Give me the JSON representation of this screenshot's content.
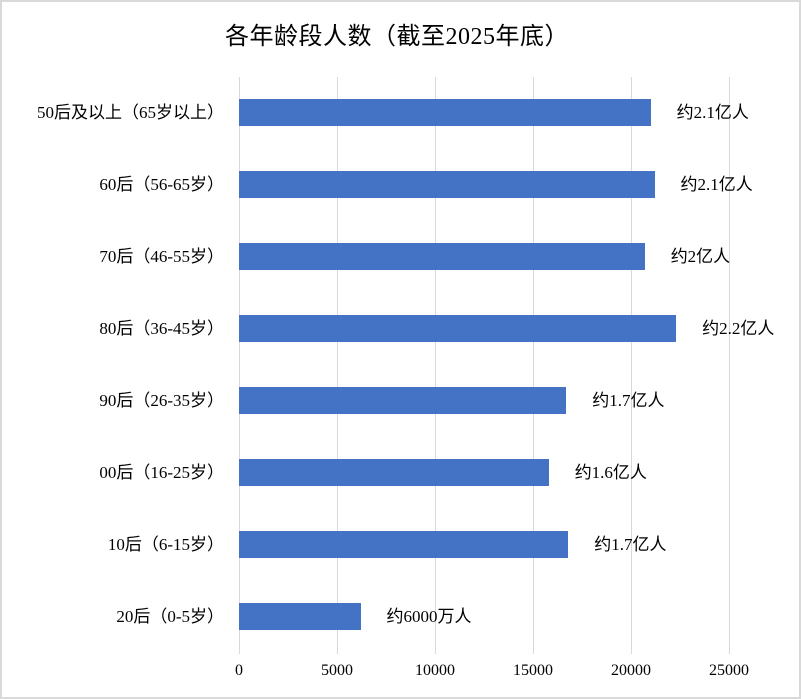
{
  "chart": {
    "title": "各年龄段人数（截至2025年底）",
    "bar_color": "#4472C4",
    "gridline_color": "#D9D9D9",
    "text_color": "#000000",
    "border_color": "#D9D9D9"
  },
  "chart_data": {
    "type": "bar",
    "orientation": "horizontal",
    "title": "各年龄段人数（截至2025年底）",
    "categories": [
      "50后及以上（65岁以上）",
      "60后（56-65岁）",
      "70后（46-55岁）",
      "80后（36-45岁）",
      "90后（26-35岁）",
      "00后（16-25岁）",
      "10后（6-15岁）",
      "20后（0-5岁）"
    ],
    "values": [
      21000,
      21200,
      20700,
      22300,
      16700,
      15800,
      16800,
      6200
    ],
    "data_labels": [
      "约2.1亿人",
      "约2.1亿人",
      "约2亿人",
      "约2.2亿人",
      "约1.7亿人",
      "约1.6亿人",
      "约1.7亿人",
      "约6000万人"
    ],
    "x_ticks": [
      "0",
      "5000",
      "10000",
      "15000",
      "20000",
      "25000"
    ],
    "x_tick_values": [
      0,
      5000,
      10000,
      15000,
      20000,
      25000
    ],
    "xlim": [
      0,
      25000
    ],
    "grid": true,
    "legend": false,
    "data_label_position": "outside-end"
  }
}
